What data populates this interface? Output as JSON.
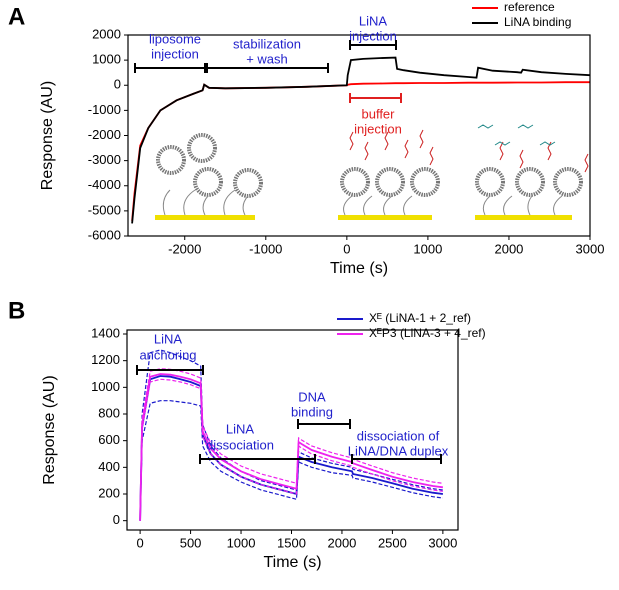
{
  "chart_data": [
    {
      "type": "line",
      "panel_label": "A",
      "xlabel": "Time (s)",
      "ylabel": "Response (AU)",
      "xlim": [
        -2700,
        3000
      ],
      "ylim": [
        -6000,
        2000
      ],
      "xticks": [
        -2000,
        -1000,
        0,
        1000,
        2000,
        3000
      ],
      "yticks": [
        -6000,
        -5000,
        -4000,
        -3000,
        -2000,
        -1000,
        0,
        1000,
        2000
      ],
      "legend": "top-right",
      "annotations": [
        {
          "lines": [
            "liposome",
            "injection"
          ],
          "color": "#2222cc"
        },
        {
          "lines": [
            "stabilization",
            "+ wash"
          ],
          "color": "#2222cc"
        },
        {
          "lines": [
            "LiNA",
            "injection"
          ],
          "color": "#2222cc"
        },
        {
          "lines": [
            "buffer",
            "injection"
          ],
          "color": "#e02020"
        }
      ],
      "x": [
        -2650,
        -2620,
        -2550,
        -2450,
        -2300,
        -2100,
        -1900,
        -1780,
        -1760,
        -1700,
        -1500,
        -1000,
        -500,
        0,
        10,
        50,
        200,
        400,
        600,
        620,
        700,
        900,
        1200,
        1500,
        1600,
        1620,
        1800,
        2100,
        2150,
        2170,
        2400,
        2700,
        3000
      ],
      "series": [
        {
          "name": "reference",
          "color": "#ff0000",
          "values": [
            -5400,
            -4300,
            -2400,
            -1700,
            -1000,
            -600,
            -350,
            -200,
            20,
            -100,
            -120,
            -100,
            -60,
            0,
            20,
            40,
            60,
            70,
            80,
            80,
            80,
            90,
            90,
            100,
            100,
            100,
            100,
            110,
            110,
            110,
            110,
            120,
            120
          ]
        },
        {
          "name": "LiNA binding",
          "color": "#000000",
          "values": [
            -5500,
            -4500,
            -2500,
            -1700,
            -1000,
            -600,
            -350,
            -200,
            20,
            -100,
            -120,
            -100,
            -60,
            0,
            400,
            1000,
            1050,
            1080,
            1100,
            650,
            600,
            500,
            400,
            330,
            300,
            700,
            580,
            520,
            500,
            620,
            520,
            450,
            400
          ]
        }
      ]
    },
    {
      "type": "line",
      "panel_label": "B",
      "xlabel": "Time (s)",
      "ylabel": "Response (AU)",
      "xlim": [
        -130,
        3150
      ],
      "ylim": [
        -70,
        1430
      ],
      "xticks": [
        0,
        500,
        1000,
        1500,
        2000,
        2500,
        3000
      ],
      "yticks": [
        0,
        200,
        400,
        600,
        800,
        1000,
        1200,
        1400
      ],
      "legend": "top-right",
      "annotations": [
        {
          "lines": [
            "LiNA",
            "anchoring"
          ],
          "color": "#2222cc"
        },
        {
          "lines": [
            "LiNA",
            "dissociation"
          ],
          "color": "#2222cc"
        },
        {
          "lines": [
            "DNA",
            "binding"
          ],
          "color": "#2222cc"
        },
        {
          "lines": [
            "dissociation of",
            "LiNA/DNA duplex"
          ],
          "color": "#2222cc"
        }
      ],
      "x": [
        0,
        20,
        100,
        200,
        300,
        400,
        500,
        600,
        620,
        700,
        800,
        1000,
        1200,
        1400,
        1550,
        1570,
        1600,
        1700,
        1900,
        2100,
        2110,
        2300,
        2500,
        2700,
        2900,
        3000
      ],
      "series": [
        {
          "name": "Xᴱ (LiNA-1 + 2_ref)",
          "color": "#1a1acc",
          "values": [
            0,
            700,
            1060,
            1085,
            1080,
            1060,
            1040,
            1010,
            640,
            500,
            420,
            330,
            270,
            230,
            200,
            480,
            470,
            440,
            400,
            370,
            350,
            320,
            280,
            240,
            210,
            200
          ],
          "upper": [
            0,
            800,
            1260,
            1280,
            1260,
            1230,
            1200,
            1160,
            720,
            560,
            470,
            370,
            300,
            260,
            230,
            520,
            505,
            470,
            430,
            400,
            385,
            350,
            310,
            270,
            240,
            230
          ],
          "lower": [
            0,
            600,
            880,
            900,
            900,
            890,
            880,
            860,
            560,
            440,
            370,
            290,
            230,
            190,
            160,
            440,
            430,
            400,
            360,
            340,
            320,
            290,
            250,
            210,
            180,
            170
          ]
        },
        {
          "name": "XᴱP3 (LiNA-3 + 4_ref)",
          "color": "#ee22ee",
          "values": [
            0,
            720,
            1080,
            1100,
            1095,
            1080,
            1060,
            1030,
            670,
            540,
            460,
            370,
            310,
            270,
            240,
            590,
            575,
            530,
            480,
            440,
            430,
            380,
            330,
            290,
            260,
            250
          ],
          "upper": [
            0,
            760,
            1120,
            1140,
            1135,
            1120,
            1100,
            1070,
            710,
            580,
            500,
            410,
            350,
            310,
            280,
            620,
            605,
            560,
            510,
            470,
            460,
            410,
            360,
            320,
            290,
            280
          ],
          "lower": [
            0,
            680,
            1040,
            1060,
            1055,
            1040,
            1020,
            990,
            630,
            500,
            420,
            330,
            270,
            230,
            200,
            560,
            545,
            500,
            450,
            410,
            400,
            350,
            300,
            260,
            230,
            220
          ]
        }
      ]
    }
  ]
}
